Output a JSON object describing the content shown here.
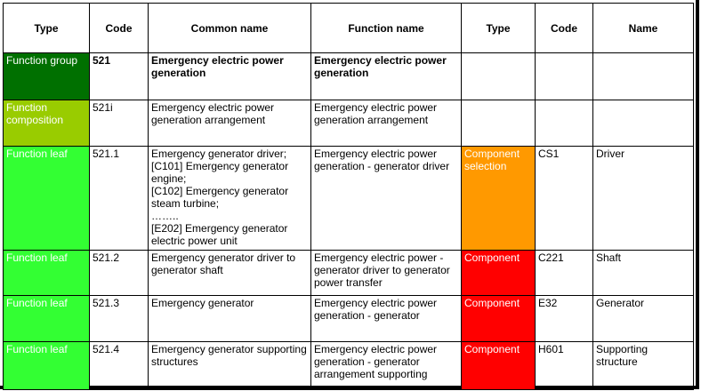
{
  "headers": [
    "Type",
    "Code",
    "Common name",
    "Function name",
    "Type",
    "Code",
    "Name"
  ],
  "colors": {
    "function_group": "#007000",
    "function_composition": "#99cc00",
    "function_leaf": "#33ff33",
    "component_selection": "#ff9900",
    "component": "#ff0000"
  },
  "rows": [
    {
      "type": "Function group",
      "code": "521",
      "common_name": "Emergency electric power generation",
      "function_name": "Emergency electric power generation",
      "comp_type": "",
      "comp_code": "",
      "comp_name": ""
    },
    {
      "type": "Function composition",
      "code": "521i",
      "common_name": "Emergency electric power generation arrangement",
      "function_name": "Emergency electric power generation arrangement",
      "comp_type": "",
      "comp_code": "",
      "comp_name": ""
    },
    {
      "type": "Function leaf",
      "code": "521.1",
      "common_name": "Emergency generator driver;\n[C101] Emergency generator engine;\n[C102] Emergency generator steam turbine;\n……..\n[E202] Emergency generator electric power unit",
      "function_name": "Emergency electric power generation - generator driver",
      "comp_type": "Component selection",
      "comp_code": "CS1",
      "comp_name": "Driver"
    },
    {
      "type": "Function leaf",
      "code": "521.2",
      "common_name": "Emergency generator driver to generator shaft",
      "function_name": "Emergency electric power - generator driver to generator power transfer",
      "comp_type": "Component",
      "comp_code": "C221",
      "comp_name": "Shaft"
    },
    {
      "type": "Function leaf",
      "code": "521.3",
      "common_name": "Emergency generator",
      "function_name": "Emergency electric power generation - generator",
      "comp_type": "Component",
      "comp_code": "E32",
      "comp_name": "Generator"
    },
    {
      "type": "Function leaf",
      "code": "521.4",
      "common_name": "Emergency generator supporting structures",
      "function_name": "Emergency electric power generation - generator arrangement supporting",
      "comp_type": "Component",
      "comp_code": "H601",
      "comp_name": "Supporting structure"
    }
  ]
}
